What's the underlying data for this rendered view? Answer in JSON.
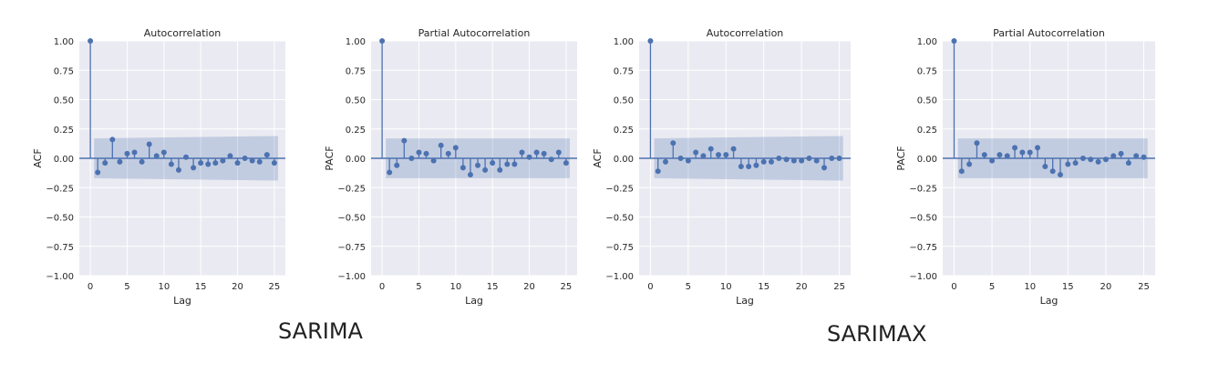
{
  "captions": {
    "left": "SARIMA",
    "right": "SARIMAX"
  },
  "colors": {
    "panel_bg": "#eaeaf2",
    "grid": "#ffffff",
    "series": "#4c72b0",
    "band": "#4c72b0"
  },
  "chart_data": [
    {
      "type": "stem",
      "title": "Autocorrelation",
      "xlabel": "Lag",
      "ylabel": "ACF",
      "xlim": [
        -1.5,
        26.5
      ],
      "ylim": [
        -1.0,
        1.0
      ],
      "xticks": [
        "0",
        "5",
        "10",
        "15",
        "20",
        "25"
      ],
      "yticks": [
        "1.00",
        "0.75",
        "0.50",
        "0.25",
        "0.00",
        "−0.25",
        "−0.50",
        "−0.75",
        "−1.00"
      ],
      "grid": true,
      "x": [
        0,
        1,
        2,
        3,
        4,
        5,
        6,
        7,
        8,
        9,
        10,
        11,
        12,
        13,
        14,
        15,
        16,
        17,
        18,
        19,
        20,
        21,
        22,
        23,
        24,
        25
      ],
      "values": [
        1.0,
        -0.12,
        -0.04,
        0.16,
        -0.03,
        0.04,
        0.05,
        -0.03,
        0.12,
        0.02,
        0.05,
        -0.05,
        -0.1,
        0.01,
        -0.08,
        -0.04,
        -0.05,
        -0.04,
        -0.02,
        0.02,
        -0.04,
        0.0,
        -0.02,
        -0.03,
        0.03,
        -0.04
      ],
      "confidence_band": {
        "x": [
          1,
          25
        ],
        "upper": [
          0.17,
          0.19
        ],
        "lower": [
          -0.17,
          -0.19
        ]
      }
    },
    {
      "type": "stem",
      "title": "Partial Autocorrelation",
      "xlabel": "Lag",
      "ylabel": "PACF",
      "xlim": [
        -1.5,
        26.5
      ],
      "ylim": [
        -1.0,
        1.0
      ],
      "xticks": [
        "0",
        "5",
        "10",
        "15",
        "20",
        "25"
      ],
      "yticks": [
        "1.00",
        "0.75",
        "0.50",
        "0.25",
        "0.00",
        "−0.25",
        "−0.50",
        "−0.75",
        "−1.00"
      ],
      "grid": true,
      "x": [
        0,
        1,
        2,
        3,
        4,
        5,
        6,
        7,
        8,
        9,
        10,
        11,
        12,
        13,
        14,
        15,
        16,
        17,
        18,
        19,
        20,
        21,
        22,
        23,
        24,
        25
      ],
      "values": [
        1.0,
        -0.12,
        -0.06,
        0.15,
        0.0,
        0.05,
        0.04,
        -0.02,
        0.11,
        0.04,
        0.09,
        -0.08,
        -0.14,
        -0.06,
        -0.1,
        -0.04,
        -0.1,
        -0.05,
        -0.05,
        0.05,
        0.01,
        0.05,
        0.04,
        -0.01,
        0.05,
        -0.04
      ],
      "confidence_band": {
        "x": [
          1,
          25
        ],
        "upper": [
          0.17,
          0.17
        ],
        "lower": [
          -0.17,
          -0.17
        ]
      }
    },
    {
      "type": "stem",
      "title": "Autocorrelation",
      "xlabel": "Lag",
      "ylabel": "ACF",
      "xlim": [
        -1.5,
        26.5
      ],
      "ylim": [
        -1.0,
        1.0
      ],
      "xticks": [
        "0",
        "5",
        "10",
        "15",
        "20",
        "25"
      ],
      "yticks": [
        "1.00",
        "0.75",
        "0.50",
        "0.25",
        "0.00",
        "−0.25",
        "−0.50",
        "−0.75",
        "−1.00"
      ],
      "grid": true,
      "x": [
        0,
        1,
        2,
        3,
        4,
        5,
        6,
        7,
        8,
        9,
        10,
        11,
        12,
        13,
        14,
        15,
        16,
        17,
        18,
        19,
        20,
        21,
        22,
        23,
        24,
        25
      ],
      "values": [
        1.0,
        -0.11,
        -0.03,
        0.13,
        0.0,
        -0.02,
        0.05,
        0.02,
        0.08,
        0.03,
        0.03,
        0.08,
        -0.07,
        -0.07,
        -0.06,
        -0.03,
        -0.03,
        0.0,
        -0.01,
        -0.02,
        -0.02,
        0.0,
        -0.02,
        -0.08,
        0.0,
        0.0
      ],
      "confidence_band": {
        "x": [
          1,
          25
        ],
        "upper": [
          0.17,
          0.19
        ],
        "lower": [
          -0.17,
          -0.19
        ]
      }
    },
    {
      "type": "stem",
      "title": "Partial Autocorrelation",
      "xlabel": "Lag",
      "ylabel": "PACF",
      "xlim": [
        -1.5,
        26.5
      ],
      "ylim": [
        -1.0,
        1.0
      ],
      "xticks": [
        "0",
        "5",
        "10",
        "15",
        "20",
        "25"
      ],
      "yticks": [
        "1.00",
        "0.75",
        "0.50",
        "0.25",
        "0.00",
        "−0.25",
        "−0.50",
        "−0.75",
        "−1.00"
      ],
      "grid": true,
      "x": [
        0,
        1,
        2,
        3,
        4,
        5,
        6,
        7,
        8,
        9,
        10,
        11,
        12,
        13,
        14,
        15,
        16,
        17,
        18,
        19,
        20,
        21,
        22,
        23,
        24,
        25
      ],
      "values": [
        1.0,
        -0.11,
        -0.05,
        0.13,
        0.03,
        -0.02,
        0.03,
        0.02,
        0.09,
        0.05,
        0.05,
        0.09,
        -0.07,
        -0.11,
        -0.14,
        -0.05,
        -0.04,
        0.0,
        -0.01,
        -0.03,
        -0.01,
        0.02,
        0.04,
        -0.04,
        0.02,
        0.01
      ],
      "confidence_band": {
        "x": [
          1,
          25
        ],
        "upper": [
          0.17,
          0.17
        ],
        "lower": [
          -0.17,
          -0.17
        ]
      }
    }
  ]
}
